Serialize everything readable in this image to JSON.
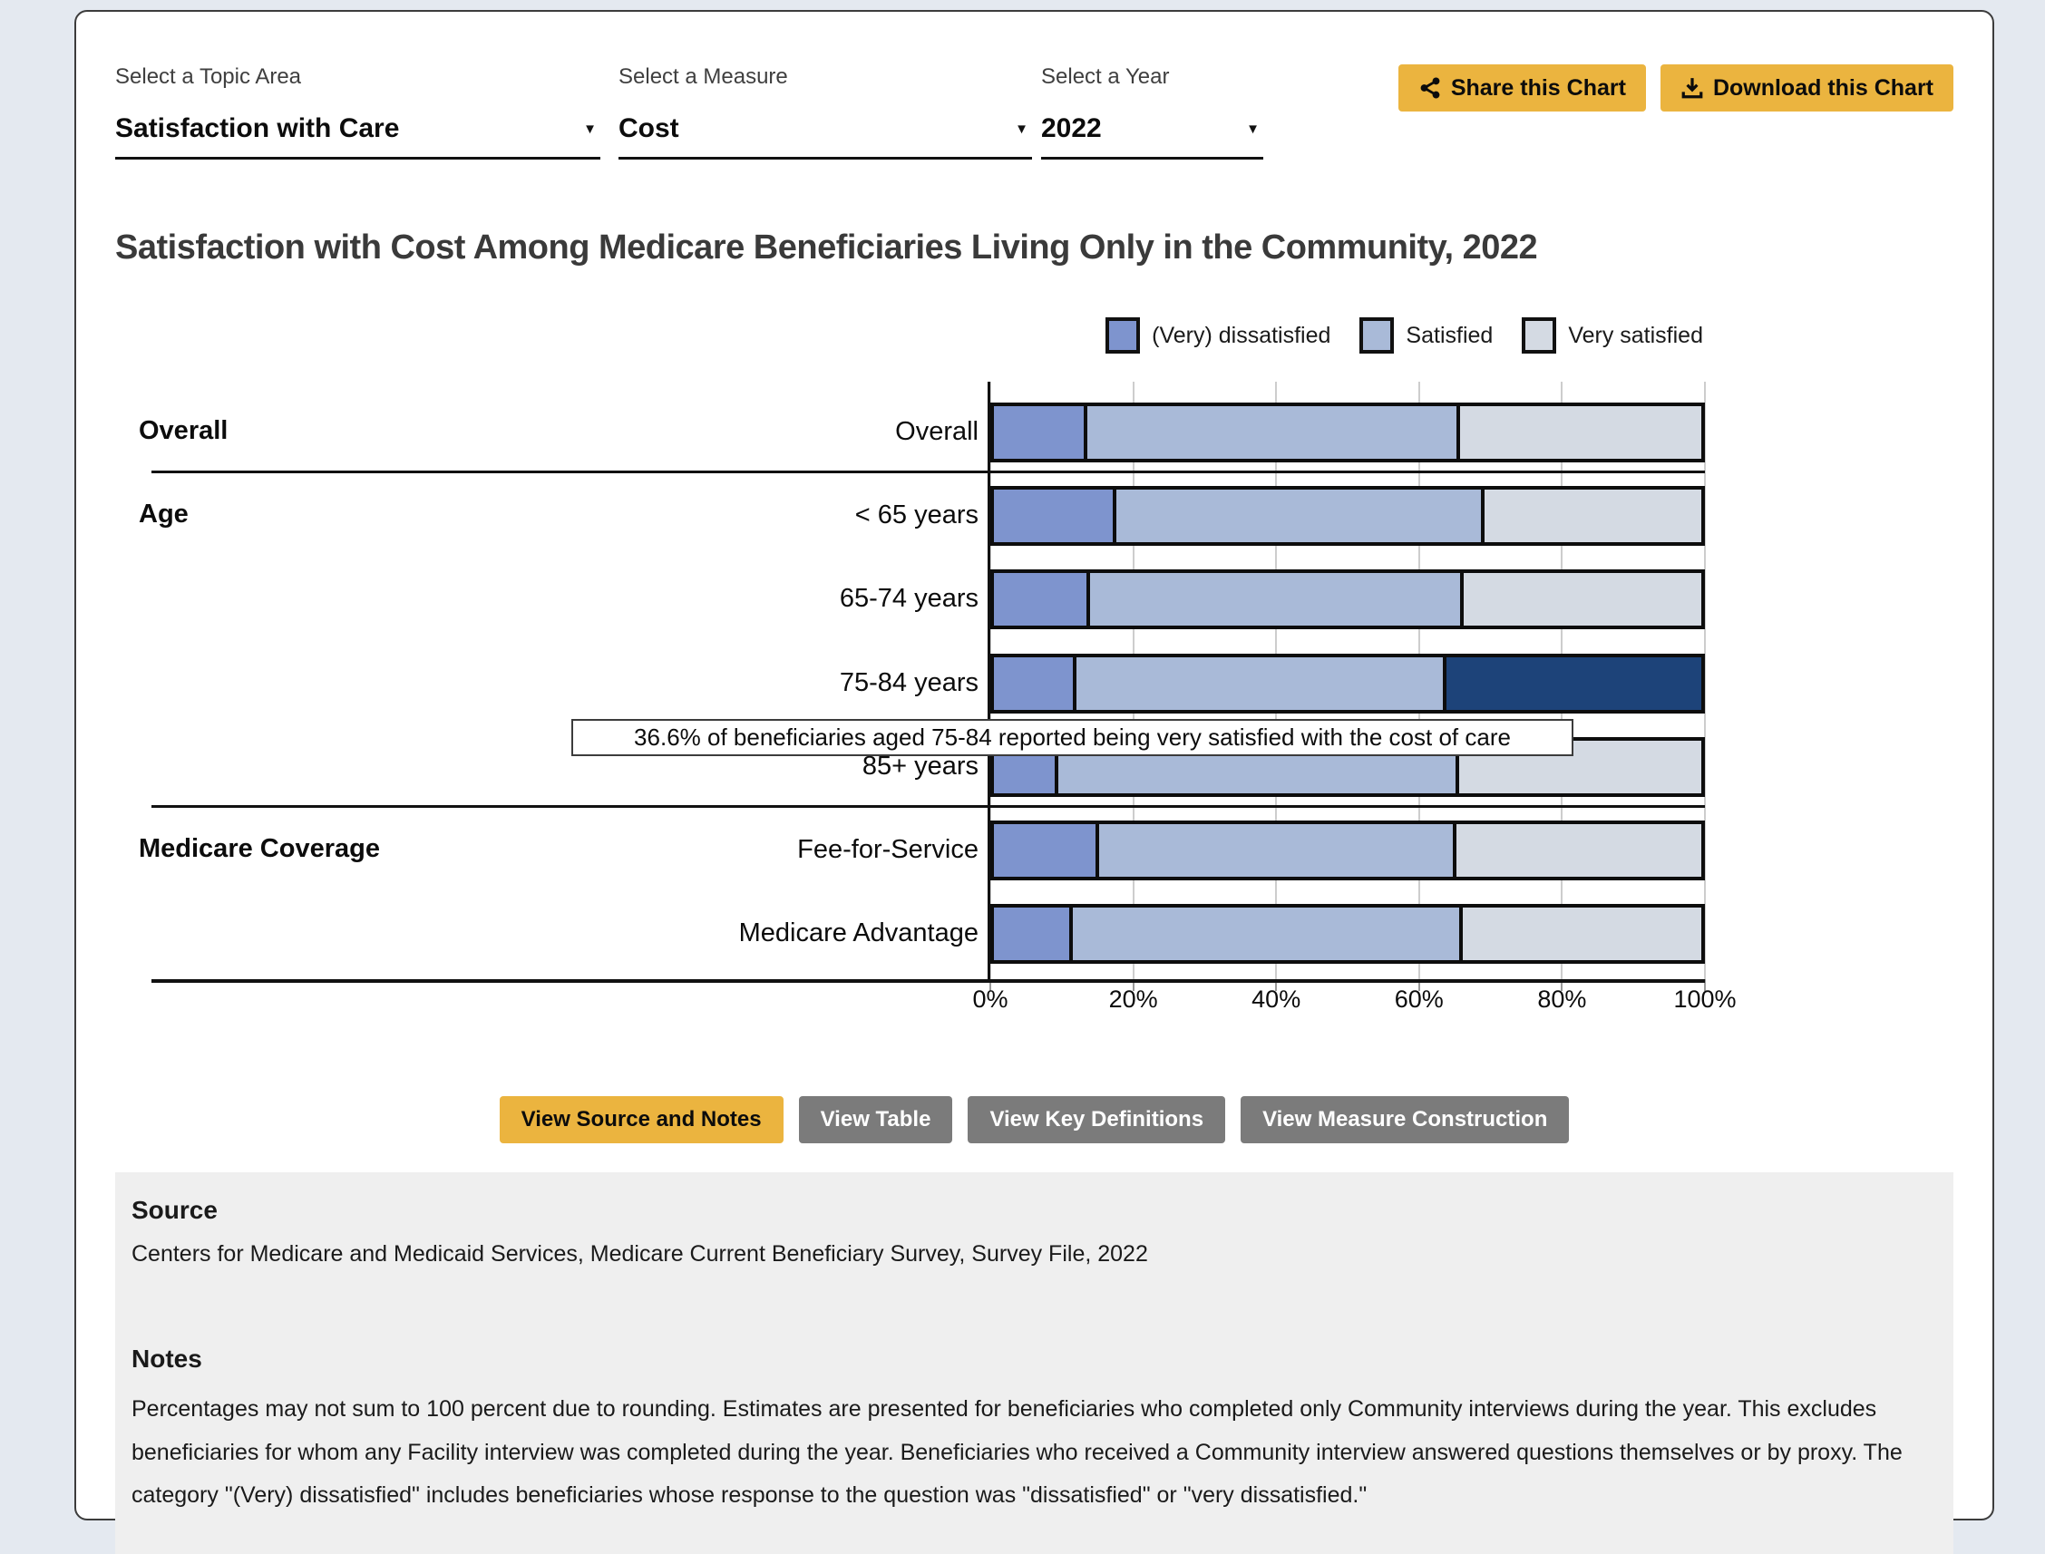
{
  "theme": {
    "accent_yellow": "#ebb43f",
    "button_gray": "#7b7b7b",
    "panel_gray": "#efefef",
    "page_background": "#e4e9f0"
  },
  "controls": {
    "topic": {
      "label": "Select a Topic Area",
      "value": "Satisfaction with Care"
    },
    "measure": {
      "label": "Select a Measure",
      "value": "Cost"
    },
    "year": {
      "label": "Select a Year",
      "value": "2022"
    },
    "share_button": "Share this Chart",
    "download_button": "Download this Chart"
  },
  "chart_data": {
    "type": "bar",
    "stacked": true,
    "orientation": "horizontal",
    "title": "Satisfaction with Cost Among Medicare Beneficiaries Living Only in the Community, 2022",
    "legend": [
      "(Very) dissatisfied",
      "Satisfied",
      "Very satisfied"
    ],
    "series_colors": [
      "#7e94ce",
      "#a9bad8",
      "#d4dae3"
    ],
    "highlight_color": "#1d4379",
    "bar_border_color": "#0d0d0d",
    "xlim": [
      0,
      100
    ],
    "x_ticks": [
      "0%",
      "20%",
      "40%",
      "60%",
      "80%",
      "100%"
    ],
    "groups": [
      {
        "label": "Overall",
        "rows": [
          {
            "label": "Overall",
            "values": [
              12.7,
              52.7,
              34.6
            ]
          }
        ]
      },
      {
        "label": "Age",
        "rows": [
          {
            "label": "< 65 years",
            "values": [
              16.8,
              52.1,
              31.1
            ]
          },
          {
            "label": "65-74 years",
            "values": [
              13.1,
              52.8,
              34.1
            ]
          },
          {
            "label": "75-84 years",
            "values": [
              11.2,
              52.2,
              36.6
            ],
            "highlight_segment": 2
          },
          {
            "label": "85+ years",
            "values": [
              8.6,
              56.7,
              34.7
            ]
          }
        ]
      },
      {
        "label": "Medicare Coverage",
        "rows": [
          {
            "label": "Fee-for-Service",
            "values": [
              14.3,
              50.6,
              35.1
            ]
          },
          {
            "label": "Medicare Advantage",
            "values": [
              10.7,
              55.1,
              34.2
            ]
          }
        ]
      }
    ],
    "tooltip": "36.6% of beneficiaries aged 75-84 reported being very satisfied with the cost of care"
  },
  "actions": [
    "View Source and Notes",
    "View Table",
    "View Key Definitions",
    "View Measure Construction"
  ],
  "source": {
    "heading": "Source",
    "text": "Centers for Medicare and Medicaid Services, Medicare Current Beneficiary Survey, Survey File, 2022"
  },
  "notes": {
    "heading": "Notes",
    "text": "Percentages may not sum to 100 percent due to rounding. Estimates are presented for beneficiaries who completed only Community interviews during the year. This excludes beneficiaries for whom any Facility interview was completed during the year. Beneficiaries who received a Community interview answered questions themselves or by proxy. The category \"(Very) dissatisfied\" includes beneficiaries whose response to the question was \"dissatisfied\" or \"very dissatisfied.\""
  }
}
